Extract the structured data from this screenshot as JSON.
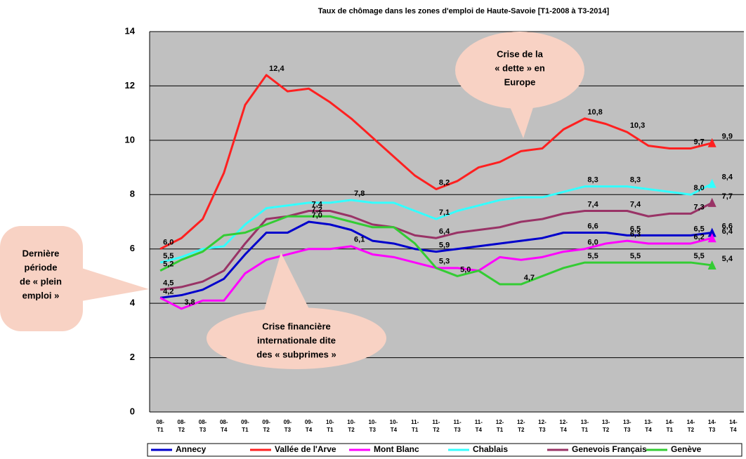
{
  "chart_data": {
    "type": "line",
    "title": "Taux de chômage dans les zones d'emploi de Haute-Savoie [T1-2008 à T3-2014]",
    "categories": [
      "08-\nT1",
      "08-\nT2",
      "08-\nT3",
      "08-\nT4",
      "09-\nT1",
      "09-\nT2",
      "09-\nT3",
      "09-\nT4",
      "10-\nT1",
      "10-\nT2",
      "10-\nT3",
      "10-\nT4",
      "11-\nT1",
      "11-\nT2",
      "11-\nT3",
      "11-\nT4",
      "12-\nT1",
      "12-\nT2",
      "12-\nT3",
      "12-\nT4",
      "13-\nT1",
      "13-\nT2",
      "13-\nT3",
      "13-\nT4",
      "14-\nT1",
      "14-\nT2",
      "14-\nT3",
      "14-\nT4"
    ],
    "ylim": [
      0,
      14
    ],
    "yticks": [
      0,
      2,
      4,
      6,
      8,
      10,
      12,
      14
    ],
    "grid": true,
    "legend": "bottom",
    "series": [
      {
        "name": "Annecy",
        "color": "#0000cc",
        "values": [
          4.2,
          4.3,
          4.5,
          4.9,
          5.8,
          6.6,
          6.6,
          7.0,
          6.9,
          6.7,
          6.3,
          6.2,
          6.0,
          5.9,
          6.0,
          6.1,
          6.2,
          6.3,
          6.4,
          6.6,
          6.6,
          6.6,
          6.5,
          6.5,
          6.5,
          6.5,
          6.6,
          null
        ],
        "value_labels": [
          "4,2",
          null,
          null,
          null,
          null,
          null,
          null,
          "7,0",
          null,
          null,
          null,
          null,
          null,
          "5,9",
          null,
          null,
          null,
          null,
          null,
          null,
          "6,6",
          null,
          "6,5",
          null,
          null,
          "6,5",
          "6,6",
          null
        ]
      },
      {
        "name": "Vallée de l'Arve",
        "color": "#ff2020",
        "values": [
          6.0,
          6.4,
          7.1,
          8.8,
          11.3,
          12.4,
          11.8,
          11.9,
          11.4,
          10.8,
          10.1,
          9.4,
          8.7,
          8.2,
          8.5,
          9.0,
          9.2,
          9.6,
          9.7,
          10.4,
          10.8,
          10.6,
          10.3,
          9.8,
          9.7,
          9.7,
          9.9,
          null
        ],
        "value_labels": [
          "6,0",
          null,
          null,
          null,
          null,
          "12,4",
          null,
          null,
          null,
          null,
          null,
          null,
          null,
          "8,2",
          null,
          null,
          null,
          null,
          null,
          null,
          "10,8",
          null,
          "10,3",
          null,
          null,
          "9,7",
          "9,9",
          null
        ]
      },
      {
        "name": "Mont Blanc",
        "color": "#ff00ff",
        "values": [
          4.2,
          3.8,
          4.1,
          4.1,
          5.1,
          5.6,
          5.8,
          6.0,
          6.0,
          6.1,
          5.8,
          5.7,
          5.5,
          5.3,
          5.3,
          5.2,
          5.7,
          5.6,
          5.7,
          5.9,
          6.0,
          6.2,
          6.3,
          6.2,
          6.2,
          6.2,
          6.4,
          null
        ],
        "value_labels": [
          null,
          "3,8",
          null,
          null,
          null,
          null,
          null,
          null,
          null,
          "6,1",
          null,
          null,
          null,
          null,
          null,
          null,
          null,
          null,
          null,
          null,
          "6,0",
          null,
          "6,3",
          null,
          null,
          "6,2",
          "6,4",
          null
        ]
      },
      {
        "name": "Chablais",
        "color": "#33ffff",
        "values": [
          5.5,
          5.7,
          6.0,
          6.1,
          6.9,
          7.5,
          7.6,
          7.7,
          7.7,
          7.8,
          7.7,
          7.7,
          7.4,
          7.1,
          7.4,
          7.6,
          7.8,
          7.9,
          7.9,
          8.1,
          8.3,
          8.3,
          8.3,
          8.2,
          8.1,
          8.0,
          8.4,
          null
        ],
        "value_labels": [
          "5,5",
          null,
          null,
          null,
          null,
          null,
          null,
          null,
          null,
          "7,8",
          null,
          null,
          null,
          "7,1",
          null,
          null,
          null,
          null,
          null,
          null,
          "8,3",
          null,
          "8,3",
          null,
          null,
          "8,0",
          "8,4",
          null
        ]
      },
      {
        "name": "Genevois Français",
        "color": "#993366",
        "values": [
          4.5,
          4.6,
          4.8,
          5.2,
          6.2,
          7.1,
          7.2,
          7.4,
          7.4,
          7.2,
          6.9,
          6.8,
          6.5,
          6.4,
          6.6,
          6.7,
          6.8,
          7.0,
          7.1,
          7.3,
          7.4,
          7.4,
          7.4,
          7.2,
          7.3,
          7.3,
          7.7,
          null
        ],
        "value_labels": [
          "4,5",
          null,
          null,
          null,
          null,
          null,
          null,
          "7,4",
          null,
          null,
          null,
          null,
          null,
          "6,4",
          null,
          null,
          null,
          null,
          null,
          null,
          "7,4",
          null,
          "7,4",
          null,
          null,
          "7,3",
          "7,7",
          null
        ]
      },
      {
        "name": "Genève",
        "color": "#33cc33",
        "values": [
          5.2,
          5.6,
          5.9,
          6.5,
          6.6,
          6.9,
          7.2,
          7.2,
          7.2,
          7.0,
          6.8,
          6.8,
          6.2,
          5.3,
          5.0,
          5.2,
          4.7,
          4.7,
          5.0,
          5.3,
          5.5,
          5.5,
          5.5,
          5.5,
          5.5,
          5.5,
          5.4,
          null
        ],
        "value_labels": [
          "5,2",
          null,
          null,
          null,
          null,
          null,
          null,
          "7,2",
          null,
          null,
          null,
          null,
          null,
          "5,3",
          "5,0",
          null,
          null,
          "4,7",
          null,
          null,
          "5,5",
          null,
          "5,5",
          null,
          null,
          "5,5",
          "5,4",
          null
        ]
      }
    ],
    "annotations": [
      {
        "text": [
          "Crise de la",
          "« dette » en",
          "Europe"
        ]
      },
      {
        "text": [
          "Dernière",
          "période",
          "de « plein",
          "emploi »"
        ]
      },
      {
        "text": [
          "Crise financière",
          "internationale dite",
          "des « subprimes »"
        ]
      }
    ]
  }
}
